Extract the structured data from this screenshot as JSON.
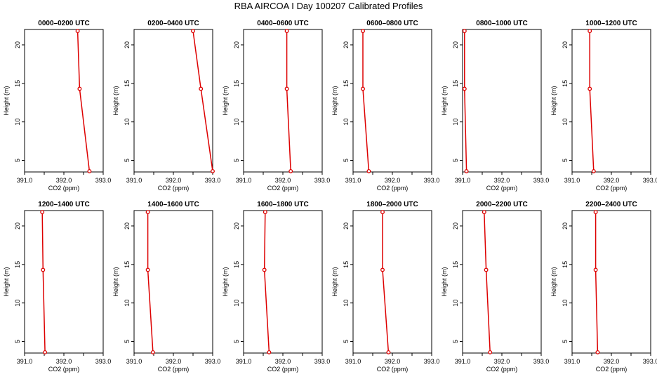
{
  "figure_title": "RBA AIRCOA I  Day 100207  Calibrated Profiles",
  "colors": {
    "series": "#dd0000",
    "axis": "#000000"
  },
  "chart_data": [
    {
      "type": "line",
      "title": "0000–0200 UTC",
      "xlabel": "CO2 (ppm)",
      "ylabel": "Height (m)",
      "xlim": [
        391.0,
        393.0
      ],
      "ylim": [
        3.5,
        22
      ],
      "xticks": [
        391.0,
        391.5,
        392.0,
        392.5,
        393.0
      ],
      "xtick_labels": [
        "391.0",
        "",
        "392.0",
        "",
        "393.0"
      ],
      "yticks": [
        5,
        10,
        15,
        20
      ],
      "ytick_labels": [
        "5",
        "10",
        "15",
        "20"
      ],
      "x": [
        392.35,
        392.4,
        392.65
      ],
      "y": [
        21.8,
        14.3,
        3.6
      ]
    },
    {
      "type": "line",
      "title": "0200–0400 UTC",
      "xlabel": "CO2 (ppm)",
      "ylabel": "Height (m)",
      "xlim": [
        391.0,
        393.0
      ],
      "ylim": [
        3.5,
        22
      ],
      "xticks": [
        391.0,
        391.5,
        392.0,
        392.5,
        393.0
      ],
      "xtick_labels": [
        "391.0",
        "",
        "392.0",
        "",
        "393.0"
      ],
      "yticks": [
        5,
        10,
        15,
        20
      ],
      "ytick_labels": [
        "5",
        "10",
        "15",
        "20"
      ],
      "x": [
        392.5,
        392.7,
        393.0
      ],
      "y": [
        21.8,
        14.3,
        3.6
      ]
    },
    {
      "type": "line",
      "title": "0400–0600 UTC",
      "xlabel": "CO2 (ppm)",
      "ylabel": "Height (m)",
      "xlim": [
        391.0,
        393.0
      ],
      "ylim": [
        3.5,
        22
      ],
      "xticks": [
        391.0,
        391.5,
        392.0,
        392.5,
        393.0
      ],
      "xtick_labels": [
        "391.0",
        "",
        "392.0",
        "",
        "393.0"
      ],
      "yticks": [
        5,
        10,
        15,
        20
      ],
      "ytick_labels": [
        "5",
        "10",
        "15",
        "20"
      ],
      "x": [
        392.1,
        392.1,
        392.2
      ],
      "y": [
        21.8,
        14.3,
        3.6
      ]
    },
    {
      "type": "line",
      "title": "0600–0800 UTC",
      "xlabel": "CO2 (ppm)",
      "ylabel": "Height (m)",
      "xlim": [
        391.0,
        393.0
      ],
      "ylim": [
        3.5,
        22
      ],
      "xticks": [
        391.0,
        391.5,
        392.0,
        392.5,
        393.0
      ],
      "xtick_labels": [
        "391.0",
        "",
        "392.0",
        "",
        "393.0"
      ],
      "yticks": [
        5,
        10,
        15,
        20
      ],
      "ytick_labels": [
        "5",
        "10",
        "15",
        "20"
      ],
      "x": [
        391.25,
        391.25,
        391.4
      ],
      "y": [
        21.8,
        14.3,
        3.6
      ]
    },
    {
      "type": "line",
      "title": "0800–1000 UTC",
      "xlabel": "CO2 (ppm)",
      "ylabel": "Height (m)",
      "xlim": [
        391.0,
        393.0
      ],
      "ylim": [
        3.5,
        22
      ],
      "xticks": [
        391.0,
        391.5,
        392.0,
        392.5,
        393.0
      ],
      "xtick_labels": [
        "391.0",
        "",
        "392.0",
        "",
        "393.0"
      ],
      "yticks": [
        5,
        10,
        15,
        20
      ],
      "ytick_labels": [
        "5",
        "10",
        "15",
        "20"
      ],
      "x": [
        391.05,
        391.05,
        391.1
      ],
      "y": [
        21.8,
        14.3,
        3.6
      ]
    },
    {
      "type": "line",
      "title": "1000–1200 UTC",
      "xlabel": "CO2 (ppm)",
      "ylabel": "Height (m)",
      "xlim": [
        391.0,
        393.0
      ],
      "ylim": [
        3.5,
        22
      ],
      "xticks": [
        391.0,
        391.5,
        392.0,
        392.5,
        393.0
      ],
      "xtick_labels": [
        "391.0",
        "",
        "392.0",
        "",
        "393.0"
      ],
      "yticks": [
        5,
        10,
        15,
        20
      ],
      "ytick_labels": [
        "5",
        "10",
        "15",
        "20"
      ],
      "x": [
        391.45,
        391.45,
        391.55
      ],
      "y": [
        21.8,
        14.3,
        3.6
      ]
    },
    {
      "type": "line",
      "title": "1200–1400 UTC",
      "xlabel": "CO2 (ppm)",
      "ylabel": "Height (m)",
      "xlim": [
        391.0,
        393.0
      ],
      "ylim": [
        3.5,
        22
      ],
      "xticks": [
        391.0,
        391.5,
        392.0,
        392.5,
        393.0
      ],
      "xtick_labels": [
        "391.0",
        "",
        "392.0",
        "",
        "393.0"
      ],
      "yticks": [
        5,
        10,
        15,
        20
      ],
      "ytick_labels": [
        "5",
        "10",
        "15",
        "20"
      ],
      "x": [
        391.45,
        391.47,
        391.52
      ],
      "y": [
        21.8,
        14.3,
        3.6
      ]
    },
    {
      "type": "line",
      "title": "1400–1600 UTC",
      "xlabel": "CO2 (ppm)",
      "ylabel": "Height (m)",
      "xlim": [
        391.0,
        393.0
      ],
      "ylim": [
        3.5,
        22
      ],
      "xticks": [
        391.0,
        391.5,
        392.0,
        392.5,
        393.0
      ],
      "xtick_labels": [
        "391.0",
        "",
        "392.0",
        "",
        "393.0"
      ],
      "yticks": [
        5,
        10,
        15,
        20
      ],
      "ytick_labels": [
        "5",
        "10",
        "15",
        "20"
      ],
      "x": [
        391.35,
        391.35,
        391.48
      ],
      "y": [
        21.8,
        14.3,
        3.6
      ]
    },
    {
      "type": "line",
      "title": "1600–1800 UTC",
      "xlabel": "CO2 (ppm)",
      "ylabel": "Height (m)",
      "xlim": [
        391.0,
        393.0
      ],
      "ylim": [
        3.5,
        22
      ],
      "xticks": [
        391.0,
        391.5,
        392.0,
        392.5,
        393.0
      ],
      "xtick_labels": [
        "391.0",
        "",
        "392.0",
        "",
        "393.0"
      ],
      "yticks": [
        5,
        10,
        15,
        20
      ],
      "ytick_labels": [
        "5",
        "10",
        "15",
        "20"
      ],
      "x": [
        391.55,
        391.53,
        391.65
      ],
      "y": [
        21.8,
        14.3,
        3.6
      ]
    },
    {
      "type": "line",
      "title": "1800–2000 UTC",
      "xlabel": "CO2 (ppm)",
      "ylabel": "Height (m)",
      "xlim": [
        391.0,
        393.0
      ],
      "ylim": [
        3.5,
        22
      ],
      "xticks": [
        391.0,
        391.5,
        392.0,
        392.5,
        393.0
      ],
      "xtick_labels": [
        "391.0",
        "",
        "392.0",
        "",
        "393.0"
      ],
      "yticks": [
        5,
        10,
        15,
        20
      ],
      "ytick_labels": [
        "5",
        "10",
        "15",
        "20"
      ],
      "x": [
        391.75,
        391.75,
        391.9
      ],
      "y": [
        21.8,
        14.3,
        3.6
      ]
    },
    {
      "type": "line",
      "title": "2000–2200 UTC",
      "xlabel": "CO2 (ppm)",
      "ylabel": "Height (m)",
      "xlim": [
        391.0,
        393.0
      ],
      "ylim": [
        3.5,
        22
      ],
      "xticks": [
        391.0,
        391.5,
        392.0,
        392.5,
        393.0
      ],
      "xtick_labels": [
        "391.0",
        "",
        "392.0",
        "",
        "393.0"
      ],
      "yticks": [
        5,
        10,
        15,
        20
      ],
      "ytick_labels": [
        "5",
        "10",
        "15",
        "20"
      ],
      "x": [
        391.55,
        391.6,
        391.7
      ],
      "y": [
        21.8,
        14.3,
        3.6
      ]
    },
    {
      "type": "line",
      "title": "2200–2400 UTC",
      "xlabel": "CO2 (ppm)",
      "ylabel": "Height (m)",
      "xlim": [
        391.0,
        393.0
      ],
      "ylim": [
        3.5,
        22
      ],
      "xticks": [
        391.0,
        391.5,
        392.0,
        392.5,
        393.0
      ],
      "xtick_labels": [
        "391.0",
        "",
        "392.0",
        "",
        "393.0"
      ],
      "yticks": [
        5,
        10,
        15,
        20
      ],
      "ytick_labels": [
        "5",
        "10",
        "15",
        "20"
      ],
      "x": [
        391.6,
        391.6,
        391.65
      ],
      "y": [
        21.8,
        14.3,
        3.6
      ]
    }
  ]
}
